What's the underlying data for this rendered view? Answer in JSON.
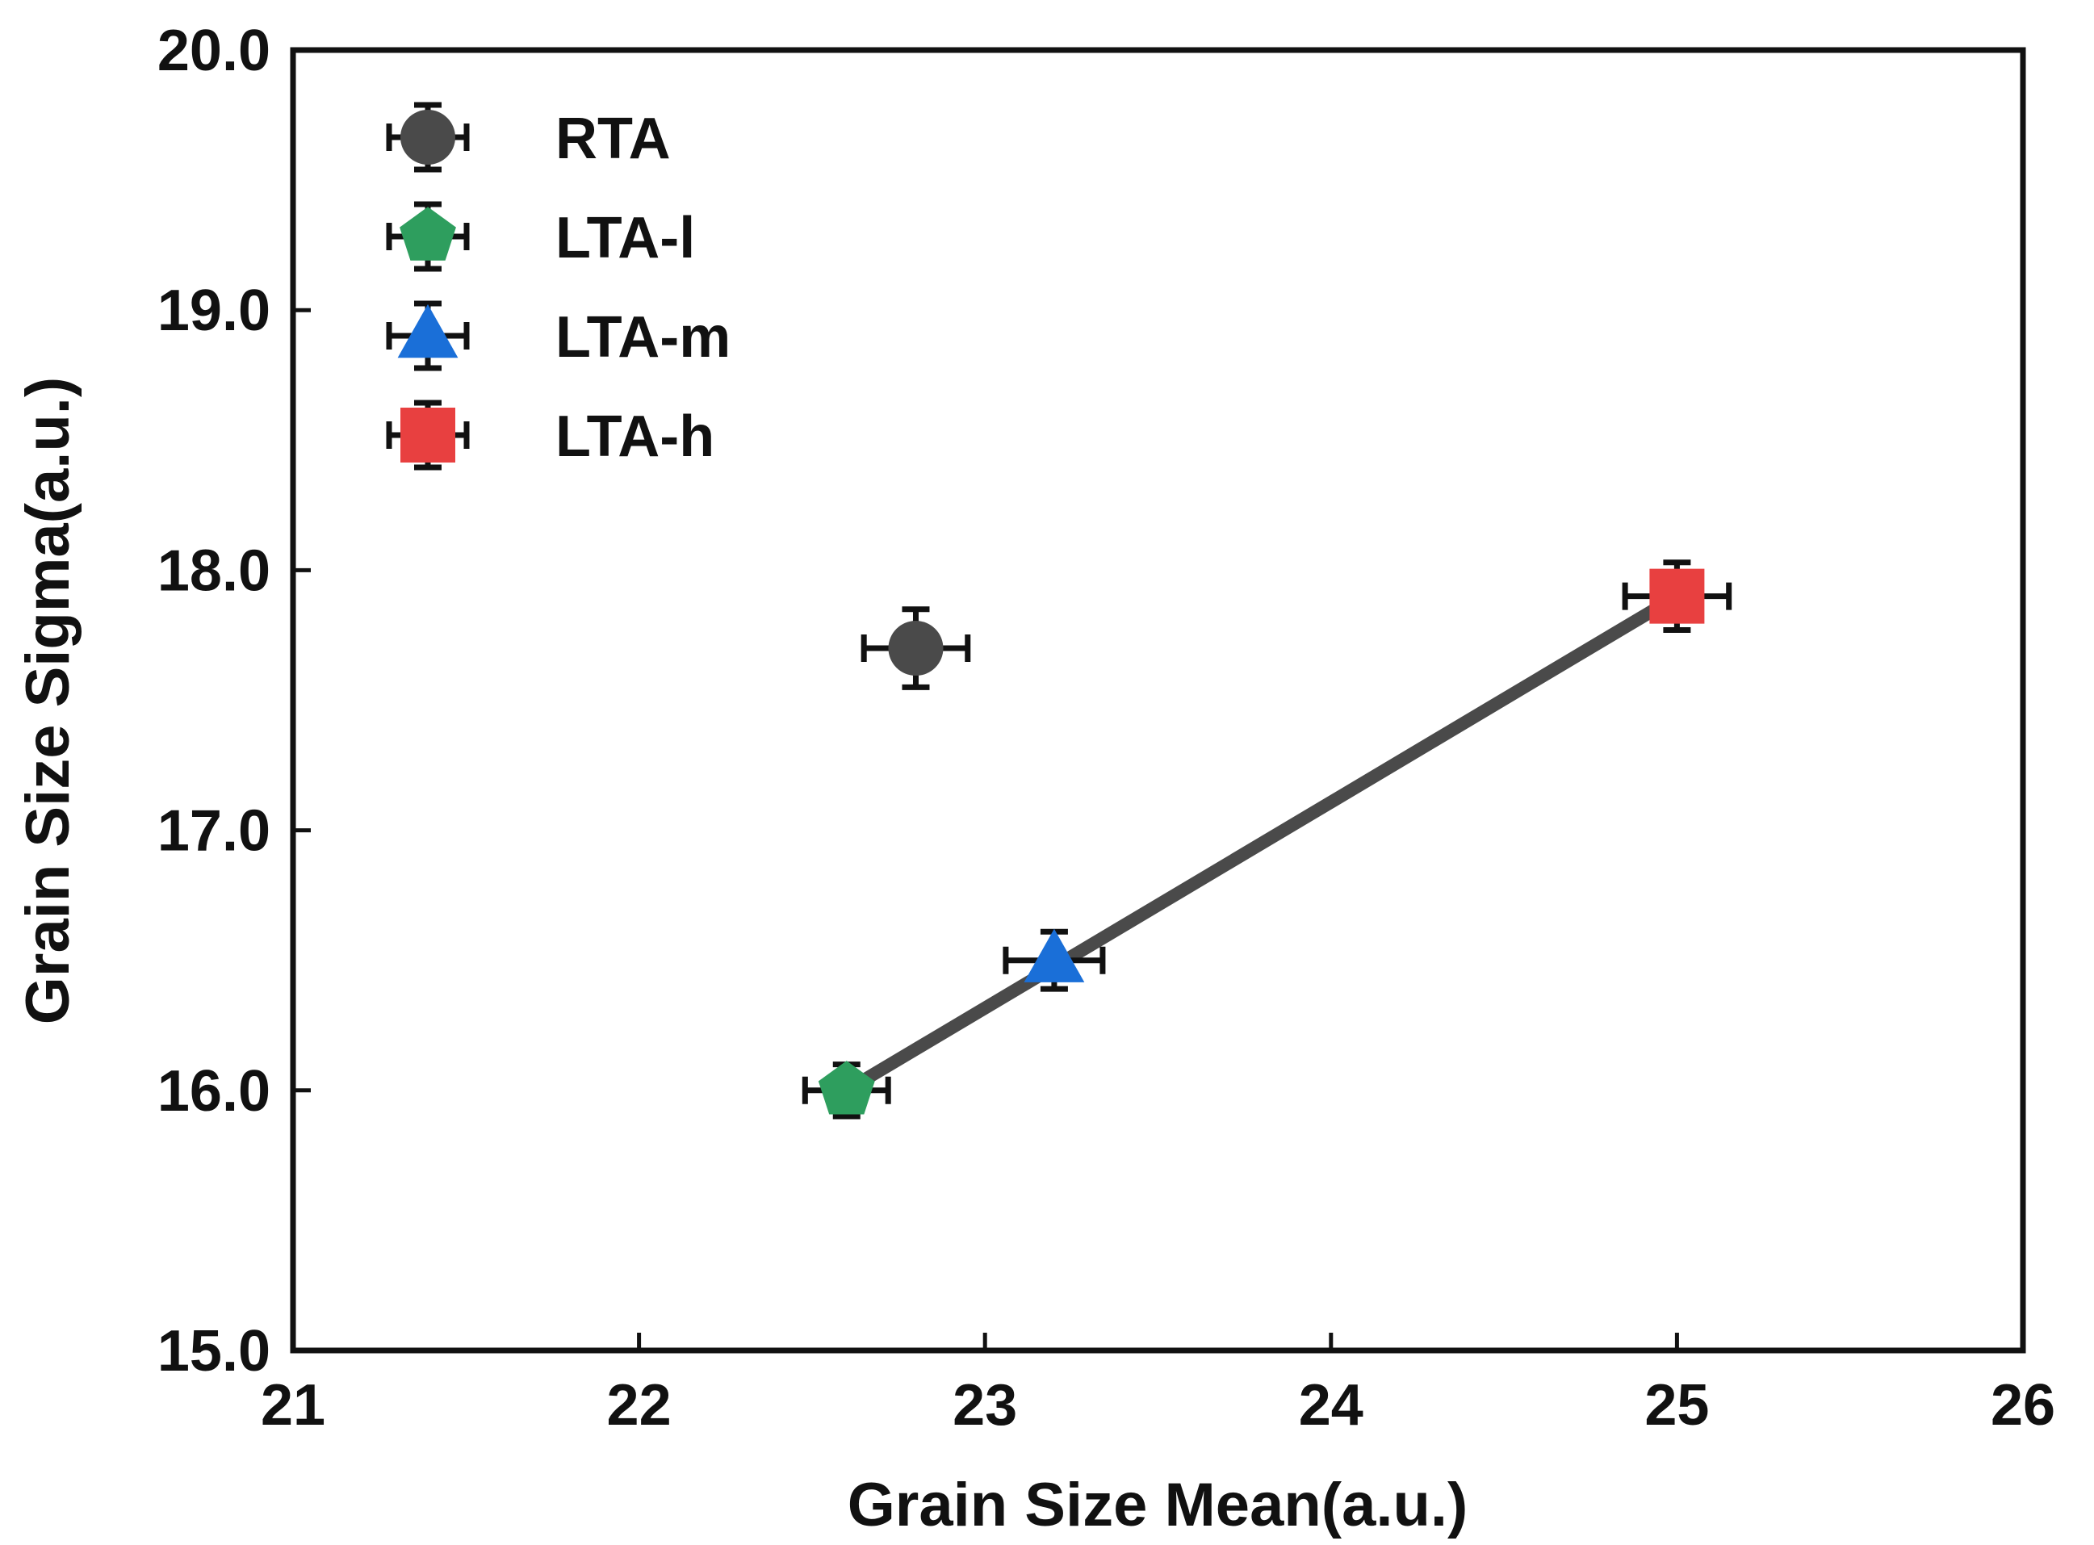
{
  "chart_data": {
    "type": "scatter",
    "title": "",
    "xlabel": "Grain Size Mean(a.u.)",
    "ylabel": "Grain Size Sigma(a.u.)",
    "xlim": [
      21,
      26
    ],
    "ylim": [
      15.0,
      20.0
    ],
    "xticks": [
      "21",
      "22",
      "23",
      "24",
      "25",
      "26"
    ],
    "yticks": [
      "15.0",
      "16.0",
      "17.0",
      "18.0",
      "19.0",
      "20.0"
    ],
    "grid": false,
    "legend_position": "top-left",
    "series": [
      {
        "name": "RTA",
        "marker": "circle",
        "color": "#4a4a4a",
        "x": 22.8,
        "y": 17.7,
        "xerr": 0.15,
        "yerr": 0.15
      },
      {
        "name": "LTA-l",
        "marker": "pentagon",
        "color": "#2e9e5e",
        "x": 22.6,
        "y": 16.0,
        "xerr": 0.12,
        "yerr": 0.1
      },
      {
        "name": "LTA-m",
        "marker": "triangle",
        "color": "#1a6fd8",
        "x": 23.2,
        "y": 16.5,
        "xerr": 0.14,
        "yerr": 0.11
      },
      {
        "name": "LTA-h",
        "marker": "square",
        "color": "#e84040",
        "x": 25.0,
        "y": 17.9,
        "xerr": 0.15,
        "yerr": 0.13
      }
    ],
    "fit_line": {
      "color": "#4a4a4a",
      "x": [
        22.6,
        25.0
      ],
      "y": [
        16.0,
        17.9
      ]
    }
  }
}
